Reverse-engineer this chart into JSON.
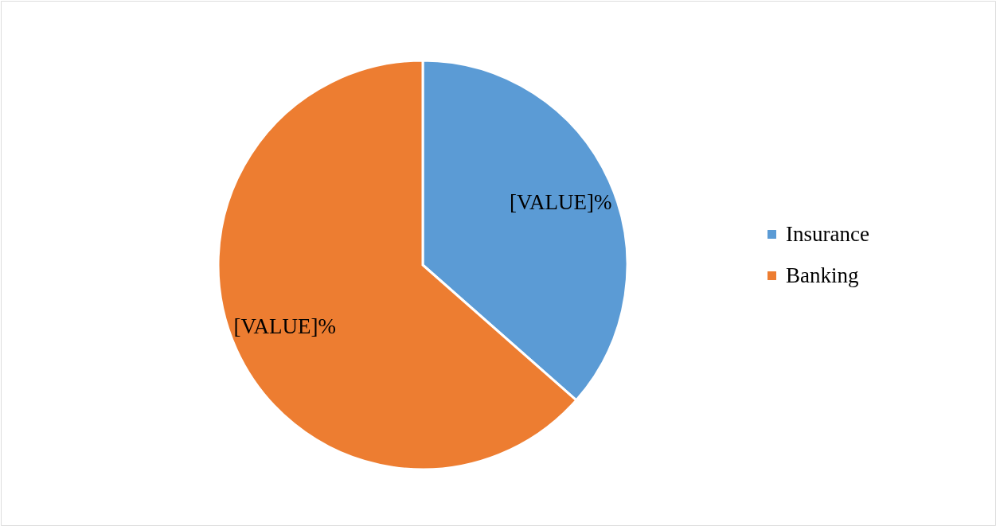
{
  "chart_data": {
    "type": "pie",
    "categories": [
      "Insurance",
      "Banking"
    ],
    "values": [
      36.5,
      63.5
    ],
    "colors": [
      "#5b9bd5",
      "#ed7d31"
    ],
    "value_labels": [
      "[VALUE]%",
      "[VALUE]%"
    ],
    "legend": "right"
  }
}
